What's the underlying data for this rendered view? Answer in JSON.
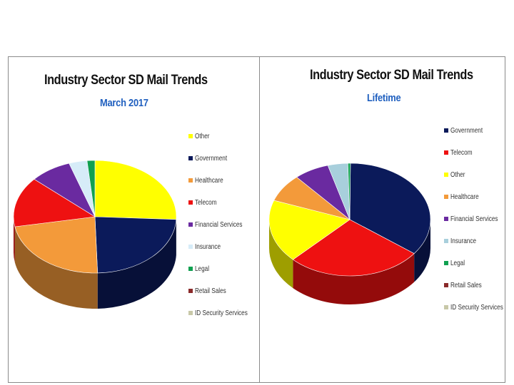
{
  "chart_data": [
    {
      "type": "pie",
      "title": "Industry Sector SD Mail Trends",
      "subtitle": "March 2017",
      "style": "3d",
      "legend_position": "right",
      "series": [
        {
          "name": "Other",
          "value": 25,
          "color": "#ffff00"
        },
        {
          "name": "Government",
          "value": 23,
          "color": "#0b1a5a"
        },
        {
          "name": "Healthcare",
          "value": 22,
          "color": "#f39a3a"
        },
        {
          "name": "Telecom",
          "value": 14,
          "color": "#ee1111"
        },
        {
          "name": "Financial Services",
          "value": 8,
          "color": "#6a2aa0"
        },
        {
          "name": "Insurance",
          "value": 3.5,
          "color": "#d6ecf8"
        },
        {
          "name": "Legal",
          "value": 1.5,
          "color": "#10a050"
        },
        {
          "name": "Retail Sales",
          "value": 0,
          "color": "#8a2a2a"
        },
        {
          "name": "ID Security Services",
          "value": 0,
          "color": "#c8c8a8"
        }
      ]
    },
    {
      "type": "pie",
      "title": "Industry Sector SD Mail Trends",
      "subtitle": "Lifetime",
      "style": "3d",
      "legend_position": "right",
      "series": [
        {
          "name": "Government",
          "value": 35,
          "color": "#0b1a5a"
        },
        {
          "name": "Telecom",
          "value": 27,
          "color": "#ee1111"
        },
        {
          "name": "Other",
          "value": 18,
          "color": "#ffff00"
        },
        {
          "name": "Healthcare",
          "value": 8,
          "color": "#f39a3a"
        },
        {
          "name": "Financial Services",
          "value": 7,
          "color": "#6a2aa0"
        },
        {
          "name": "Insurance",
          "value": 4,
          "color": "#a8cfdc"
        },
        {
          "name": "Legal",
          "value": 0.5,
          "color": "#10a050"
        },
        {
          "name": "Retail Sales",
          "value": 0,
          "color": "#8a2a2a"
        },
        {
          "name": "ID Security Services",
          "value": 0,
          "color": "#c8c8a8"
        }
      ]
    }
  ]
}
